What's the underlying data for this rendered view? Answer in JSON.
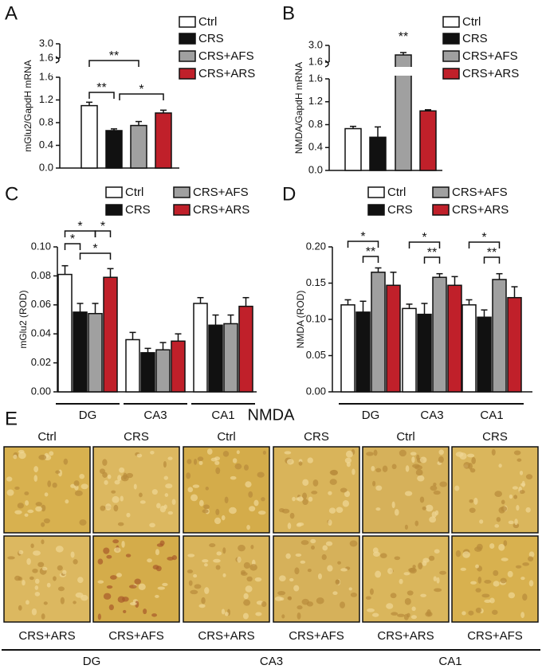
{
  "chart_data": [
    {
      "type": "bar",
      "panel": "A",
      "y_label": "mGlu2/GapdH mRNA",
      "ylim": [
        0,
        3.0
      ],
      "ybreak": 1.6,
      "yticks": [
        {
          "value": 0,
          "label": "0.0"
        },
        {
          "value": 0.4,
          "label": "0.4"
        },
        {
          "value": 0.8,
          "label": "0.8"
        },
        {
          "value": 1.2,
          "label": "1.2"
        },
        {
          "value": 1.6,
          "label": "1.6"
        }
      ],
      "y_upper_ticks": [
        {
          "value": 1.6,
          "label": "1.6"
        },
        {
          "value": 3,
          "label": "3.0"
        }
      ],
      "series": [
        {
          "name": "Ctrl",
          "color": "#ffffff",
          "values": [
            1.1
          ],
          "errors": [
            0.06
          ]
        },
        {
          "name": "CRS",
          "color": "#111111",
          "values": [
            0.66
          ],
          "errors": [
            0.03
          ]
        },
        {
          "name": "CRS+AFS",
          "color": "#a0a0a0",
          "values": [
            0.75
          ],
          "errors": [
            0.07
          ]
        },
        {
          "name": "CRS+ARS",
          "color": "#c0202a",
          "values": [
            0.97
          ],
          "errors": [
            0.05
          ]
        }
      ],
      "annotations": [
        "**",
        "**",
        "*"
      ]
    },
    {
      "type": "bar",
      "panel": "B",
      "y_label": "NMDA/GapdH mRNA",
      "ylim": [
        0,
        3.0
      ],
      "ybreak": 1.6,
      "yticks": [
        {
          "value": 0,
          "label": "0.0"
        },
        {
          "value": 0.4,
          "label": "0.4"
        },
        {
          "value": 0.8,
          "label": "0.8"
        },
        {
          "value": 1.2,
          "label": "1.2"
        },
        {
          "value": 1.6,
          "label": "1.6"
        }
      ],
      "y_upper_ticks": [
        {
          "value": 1.6,
          "label": "1.6"
        },
        {
          "value": 3,
          "label": "3.0"
        }
      ],
      "series": [
        {
          "name": "Ctrl",
          "color": "#ffffff",
          "values": [
            0.73
          ],
          "errors": [
            0.04
          ]
        },
        {
          "name": "CRS",
          "color": "#111111",
          "values": [
            0.58
          ],
          "errors": [
            0.18
          ]
        },
        {
          "name": "CRS+AFS",
          "color": "#a0a0a0",
          "values": [
            2.2
          ],
          "errors": [
            0.2
          ]
        },
        {
          "name": "CRS+ARS",
          "color": "#c0202a",
          "values": [
            1.04
          ],
          "errors": [
            0.02
          ]
        }
      ],
      "annotations": [
        "**"
      ]
    },
    {
      "type": "bar",
      "panel": "C",
      "y_label": "mGlu2 (ROD)",
      "categories": [
        "DG",
        "CA3",
        "CA1"
      ],
      "ylim": [
        0,
        0.1
      ],
      "yticks": [
        {
          "value": 0,
          "label": "0.00"
        },
        {
          "value": 0.02,
          "label": "0.02"
        },
        {
          "value": 0.04,
          "label": "0.04"
        },
        {
          "value": 0.06,
          "label": "0.06"
        },
        {
          "value": 0.08,
          "label": "0.08"
        },
        {
          "value": 0.1,
          "label": "0.10"
        }
      ],
      "series": [
        {
          "name": "Ctrl",
          "color": "#ffffff",
          "values": [
            0.081,
            0.036,
            0.061
          ],
          "errors": [
            0.006,
            0.005,
            0.004
          ]
        },
        {
          "name": "CRS",
          "color": "#111111",
          "values": [
            0.055,
            0.027,
            0.046
          ],
          "errors": [
            0.006,
            0.003,
            0.007
          ]
        },
        {
          "name": "CRS+AFS",
          "color": "#a0a0a0",
          "values": [
            0.054,
            0.029,
            0.047
          ],
          "errors": [
            0.007,
            0.005,
            0.006
          ]
        },
        {
          "name": "CRS+ARS",
          "color": "#c0202a",
          "values": [
            0.079,
            0.035,
            0.059
          ],
          "errors": [
            0.006,
            0.005,
            0.006
          ]
        }
      ],
      "annotations": [
        "*",
        "*",
        "*",
        "*"
      ]
    },
    {
      "type": "bar",
      "panel": "D",
      "y_label": "NMDA (ROD)",
      "categories": [
        "DG",
        "CA3",
        "CA1"
      ],
      "ylim": [
        0,
        0.2
      ],
      "yticks": [
        {
          "value": 0,
          "label": "0.00"
        },
        {
          "value": 0.05,
          "label": "0.05"
        },
        {
          "value": 0.1,
          "label": "0.10"
        },
        {
          "value": 0.15,
          "label": "0.15"
        },
        {
          "value": 0.2,
          "label": "0.20"
        }
      ],
      "series": [
        {
          "name": "Ctrl",
          "color": "#ffffff",
          "values": [
            0.12,
            0.115,
            0.12
          ],
          "errors": [
            0.007,
            0.006,
            0.007
          ]
        },
        {
          "name": "CRS",
          "color": "#111111",
          "values": [
            0.11,
            0.107,
            0.103
          ],
          "errors": [
            0.015,
            0.015,
            0.01
          ]
        },
        {
          "name": "CRS+AFS",
          "color": "#a0a0a0",
          "values": [
            0.165,
            0.158,
            0.155
          ],
          "errors": [
            0.006,
            0.005,
            0.008
          ]
        },
        {
          "name": "CRS+ARS",
          "color": "#c0202a",
          "values": [
            0.147,
            0.147,
            0.13
          ],
          "errors": [
            0.018,
            0.012,
            0.015
          ]
        }
      ],
      "annotations": [
        "*",
        "**",
        "*",
        "**",
        "*",
        "**"
      ]
    }
  ],
  "panel_e": {
    "panel": "E",
    "title": "NMDA",
    "top_labels": [
      "Ctrl",
      "CRS",
      "Ctrl",
      "CRS",
      "Ctrl",
      "CRS"
    ],
    "bottom_labels": [
      "CRS+ARS",
      "CRS+AFS",
      "CRS+ARS",
      "CRS+AFS",
      "CRS+ARS",
      "CRS+AFS"
    ],
    "regions": [
      "DG",
      "CA3",
      "CA1"
    ]
  }
}
